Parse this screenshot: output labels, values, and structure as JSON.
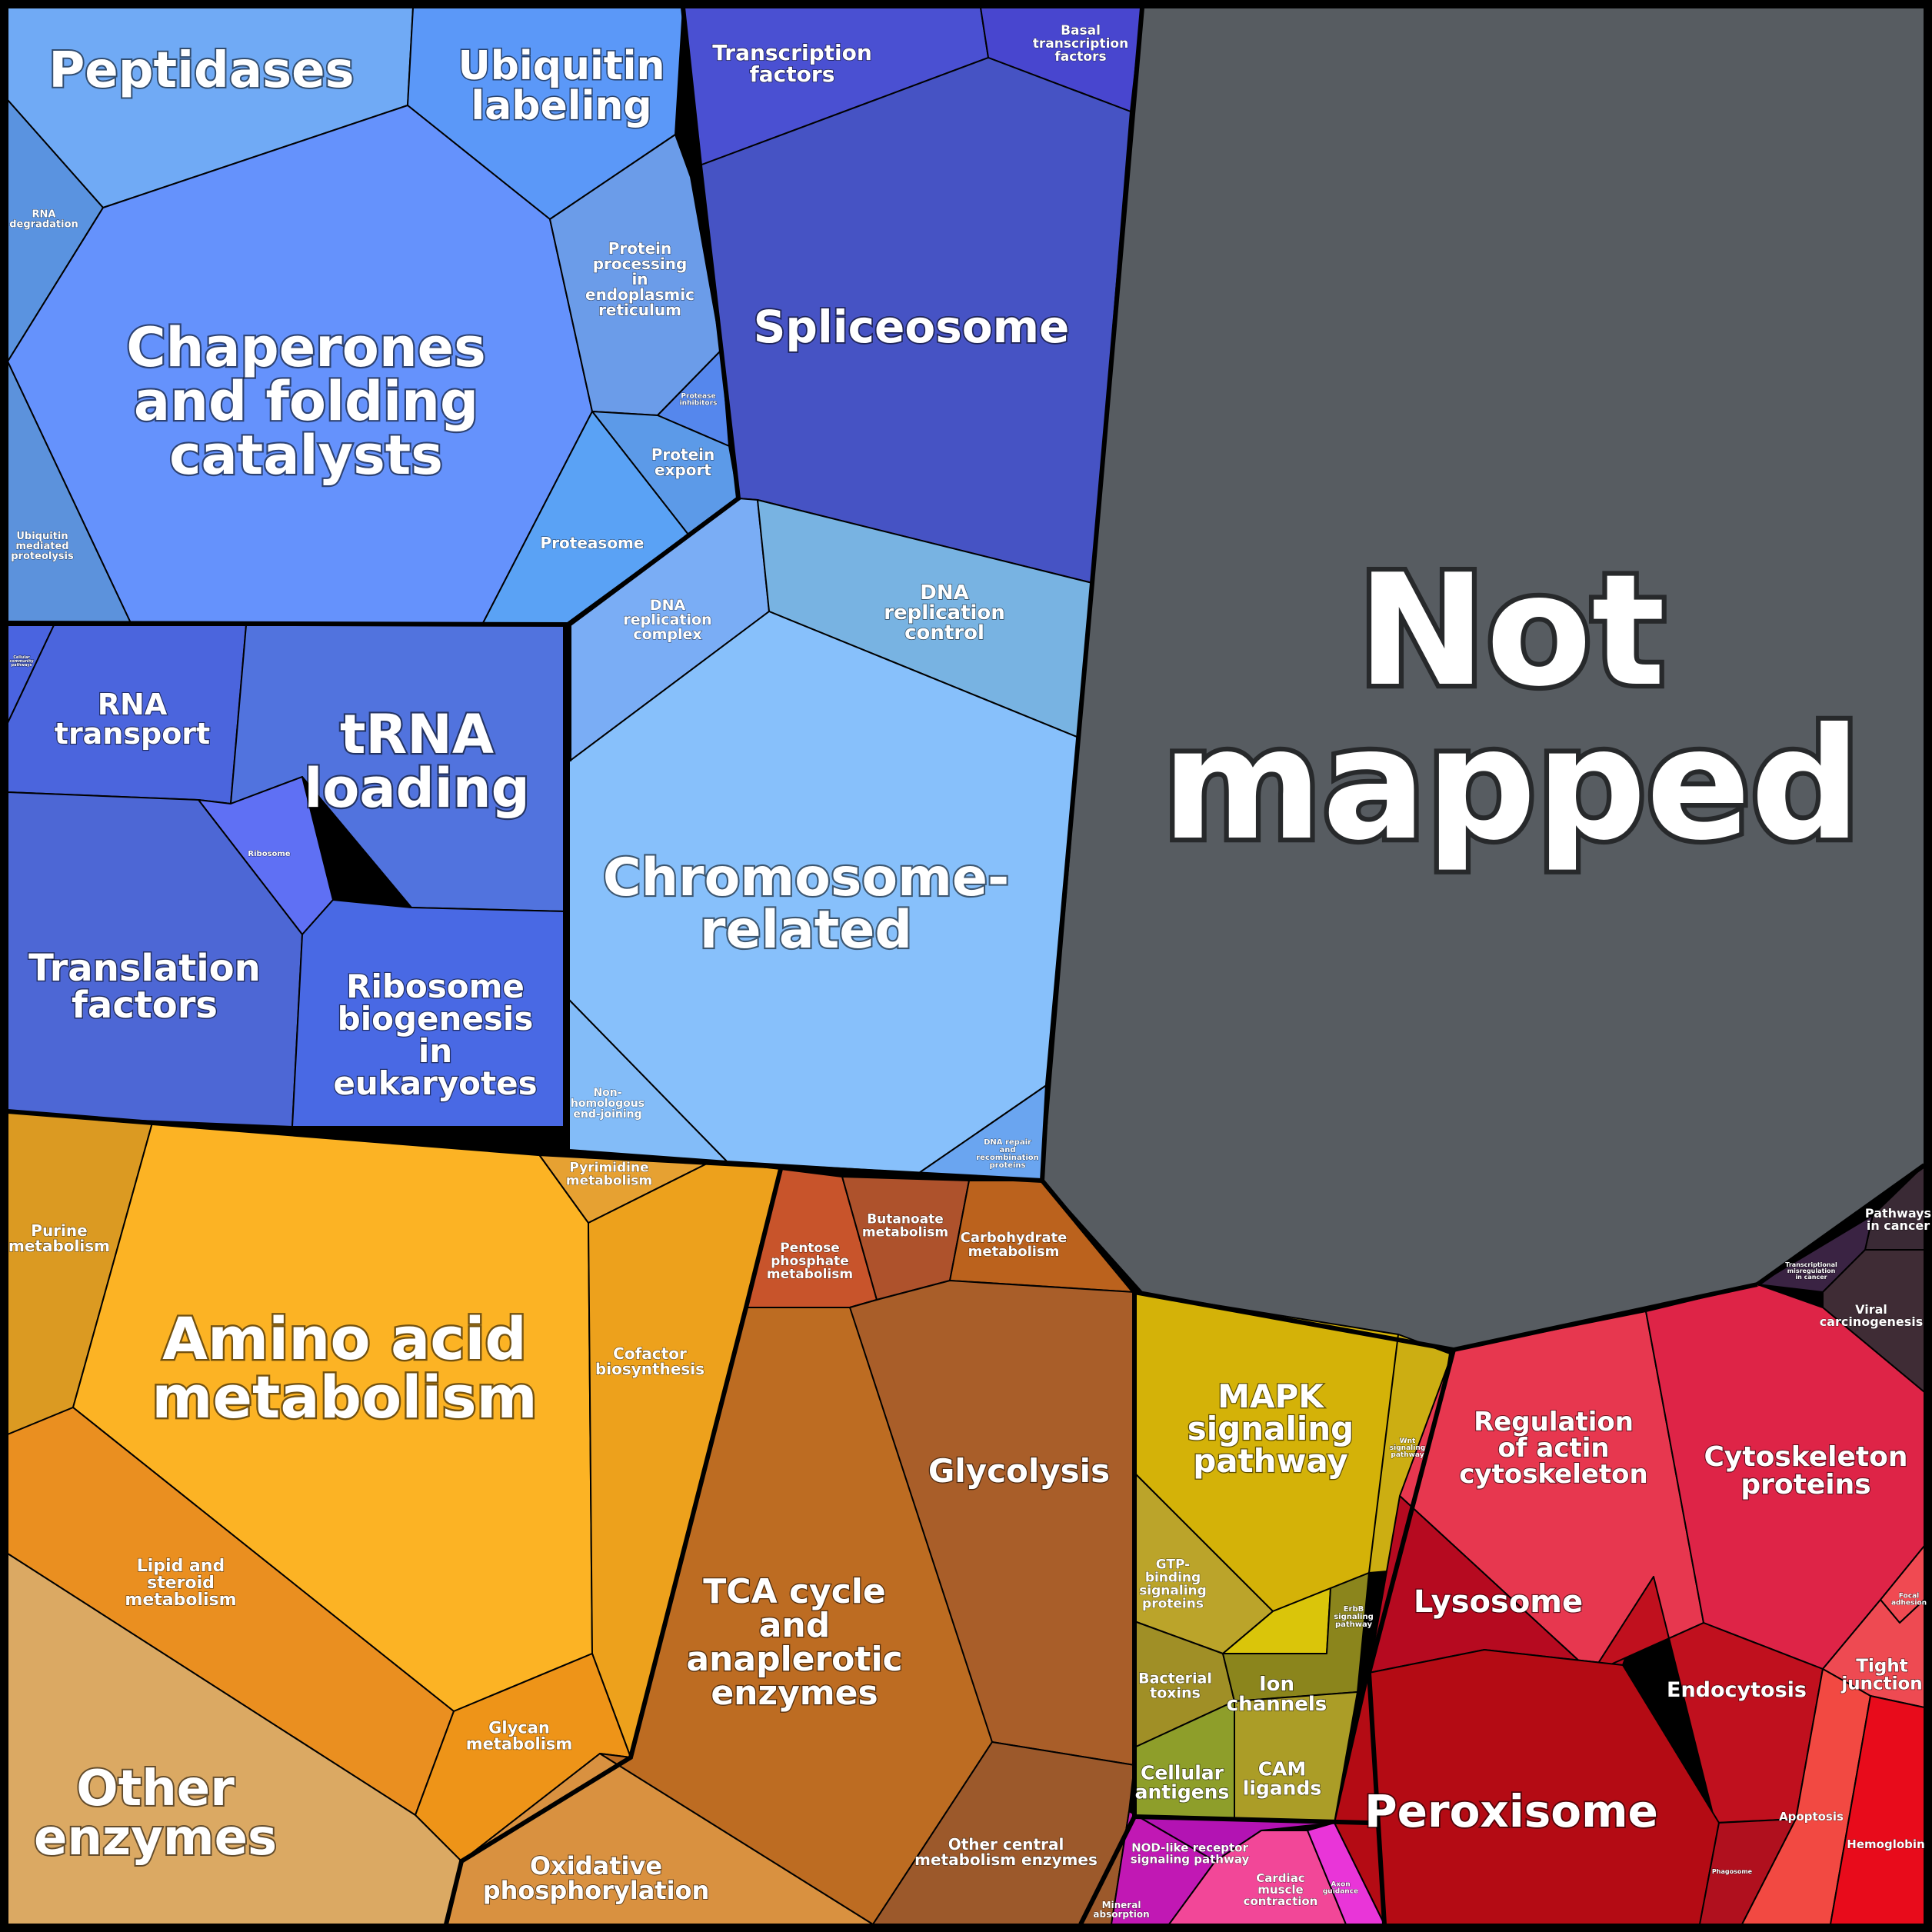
{
  "chart_data": {
    "type": "voronoi-treemap",
    "cells": [
      {
        "label": "Peptidases",
        "color": "#70aaf5"
      },
      {
        "label": "Ubiquitin labeling",
        "color": "#5b98f8"
      },
      {
        "label": "RNA degradation",
        "color": "#5a93e0"
      },
      {
        "label": "Chaperones and folding catalysts",
        "color": "#6592fc"
      },
      {
        "label": "Ubiquitin mediated proteolysis",
        "color": "#5c92dc"
      },
      {
        "label": "Protein processing in endoplasmic reticulum",
        "color": "#6b9ce9"
      },
      {
        "label": "Protease inhibitors",
        "color": "#5587ed"
      },
      {
        "label": "Protein export",
        "color": "#5c9ae8"
      },
      {
        "label": "Proteasome",
        "color": "#5aa2f5"
      },
      {
        "label": "Transcription factors",
        "color": "#4a50d2"
      },
      {
        "label": "Basal transcription factors",
        "color": "#4846cf"
      },
      {
        "label": "Spliceosome",
        "color": "#4653c4"
      },
      {
        "label": "DNA replication complex",
        "color": "#7aadf5"
      },
      {
        "label": "DNA replication control",
        "color": "#78b3e2"
      },
      {
        "label": "Chromosome-related",
        "color": "#87c0fb"
      },
      {
        "label": "Non-homologous end-joining",
        "color": "#83bcf8"
      },
      {
        "label": "DNA repair and recombination proteins",
        "color": "#6aa5f0"
      },
      {
        "label": "Cellular community",
        "color": "#4a64e0"
      },
      {
        "label": "RNA transport",
        "color": "#4b65dd"
      },
      {
        "label": "tRNA loading",
        "color": "#5173de"
      },
      {
        "label": "Ribosome",
        "color": "#5f70f4"
      },
      {
        "label": "Translation factors",
        "color": "#4d67d5"
      },
      {
        "label": "Ribosome biogenesis in eukaryotes",
        "color": "#4969e4"
      },
      {
        "label": "Not mapped",
        "color": "#575c61"
      },
      {
        "label": "Purine metabolism",
        "color": "#db9a22"
      },
      {
        "label": "Amino acid metabolism",
        "color": "#fcb324"
      },
      {
        "label": "Pyrimidine metabolism",
        "color": "#e6a132"
      },
      {
        "label": "Cofactor biosynthesis",
        "color": "#eda11c"
      },
      {
        "label": "Lipid and steroid metabolism",
        "color": "#ea8f20"
      },
      {
        "label": "Glycan metabolism",
        "color": "#ee9418"
      },
      {
        "label": "Other enzymes",
        "color": "#dba963"
      },
      {
        "label": "Oxidative phosphorylation",
        "color": "#d99140"
      },
      {
        "label": "Pentose phosphate metabolism",
        "color": "#c8542b"
      },
      {
        "label": "Butanoate metabolism",
        "color": "#ae522c"
      },
      {
        "label": "Carbohydrate metabolism",
        "color": "#bb621d"
      },
      {
        "label": "TCA cycle and anaplerotic enzymes",
        "color": "#bd6c22"
      },
      {
        "label": "Glycolysis",
        "color": "#a95e29"
      },
      {
        "label": "Other central metabolism enzymes",
        "color": "#9c592b"
      },
      {
        "label": "MAPK signaling pathway",
        "color": "#d4b208"
      },
      {
        "label": "Wnt signaling pathway",
        "color": "#ccae12"
      },
      {
        "label": "GTP-binding signaling proteins",
        "color": "#bba42a"
      },
      {
        "label": "ErbB signaling pathway",
        "color": "#dac50a"
      },
      {
        "label": "Bacterial toxins",
        "color": "#a08f26"
      },
      {
        "label": "Ion channels",
        "color": "#8b851c"
      },
      {
        "label": "Cellular antigens",
        "color": "#8e9e2a"
      },
      {
        "label": "CAM ligands",
        "color": "#ab9d27"
      },
      {
        "label": "NOD-like receptor signaling pathway",
        "color": "#b313b3"
      },
      {
        "label": "Mineral absorption",
        "color": "#c118b4"
      },
      {
        "label": "Cardiac muscle contraction",
        "color": "#f24798"
      },
      {
        "label": "Axon guidance",
        "color": "#e935d8"
      },
      {
        "label": "Pathways in cancer",
        "color": "#3a2a35"
      },
      {
        "label": "Transcriptional misregulation in cancer",
        "color": "#3a2343"
      },
      {
        "label": "Viral carcinogenesis",
        "color": "#3f2c35"
      },
      {
        "label": "Regulation of actin cytoskeleton",
        "color": "#e7374f"
      },
      {
        "label": "Cytoskeleton proteins",
        "color": "#de2447"
      },
      {
        "label": "Focal adhesion",
        "color": "#f04a52"
      },
      {
        "label": "Tight junction",
        "color": "#ee4a52"
      },
      {
        "label": "Lysosome",
        "color": "#b60a20"
      },
      {
        "label": "Endocytosis",
        "color": "#c0101e"
      },
      {
        "label": "Peroxisome",
        "color": "#b40b14"
      },
      {
        "label": "Phagosome",
        "color": "#b0101e"
      },
      {
        "label": "Apoptosis",
        "color": "#f24942"
      },
      {
        "label": "Hemoglobin",
        "color": "#e80b1b"
      }
    ]
  }
}
